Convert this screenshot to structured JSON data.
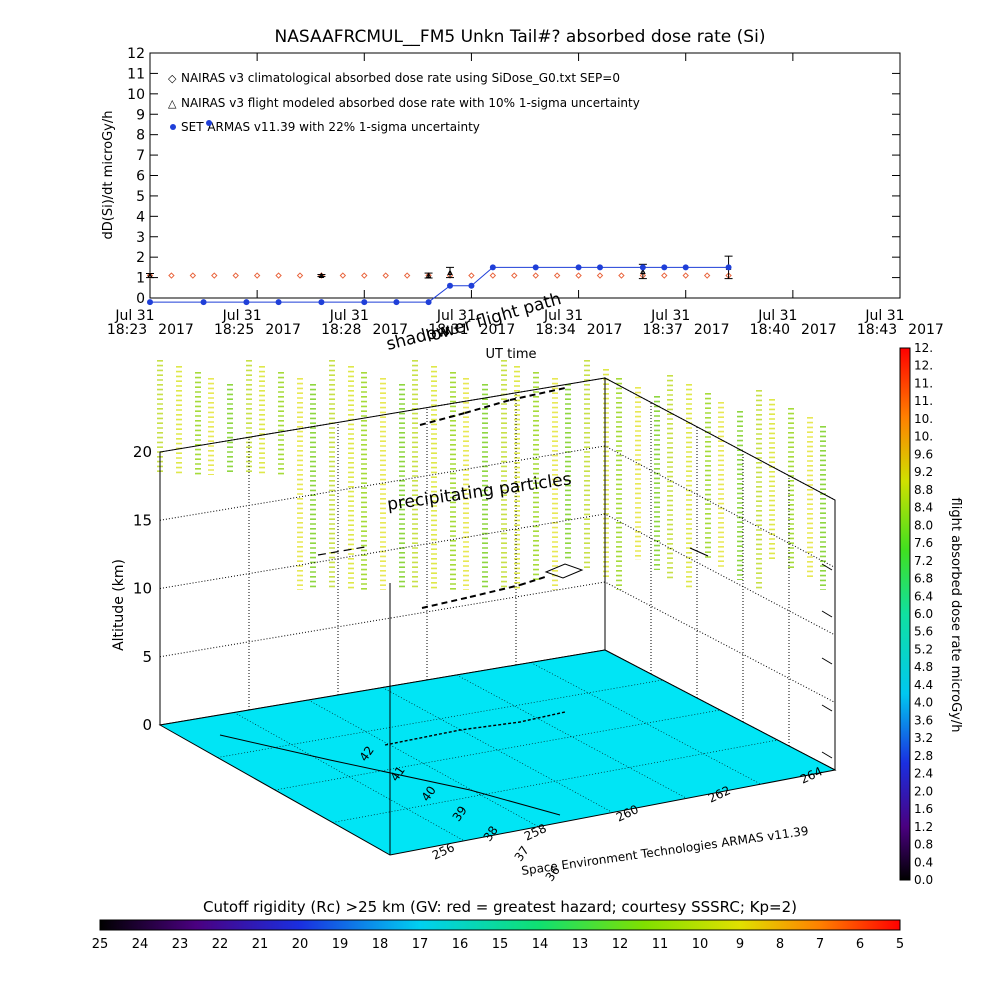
{
  "title": "NASAAFRCMUL__FM5 Unkn Tail#? absorbed dose rate (Si)",
  "chart_data": [
    {
      "type": "line",
      "ylabel": "dD(Si)/dt microGy/h",
      "xlabel": "UT time",
      "ylim": [
        0,
        12
      ],
      "yticks": [
        "0",
        "1",
        "2",
        "3",
        "4",
        "5",
        "6",
        "7",
        "8",
        "9",
        "10",
        "11",
        "12"
      ],
      "xticks": [
        {
          "day": "Jul 31",
          "time": "18:23",
          "year": "2017"
        },
        {
          "day": "Jul 31",
          "time": "18:25",
          "year": "2017"
        },
        {
          "day": "Jul 31",
          "time": "18:28",
          "year": "2017"
        },
        {
          "day": "Jul 31",
          "time": "18:31",
          "year": "2017"
        },
        {
          "day": "Jul 31",
          "time": "18:34",
          "year": "2017"
        },
        {
          "day": "Jul 31",
          "time": "18:37",
          "year": "2017"
        },
        {
          "day": "Jul 31",
          "time": "18:40",
          "year": "2017"
        },
        {
          "day": "Jul 31",
          "time": "18:43",
          "year": "2017"
        }
      ],
      "legend": [
        "NAIRAS v3 climatological absorbed dose rate using SiDose_G0.txt SEP=0",
        "NAIRAS v3 flight modeled absorbed dose rate with 10% 1-sigma uncertainty",
        "SET ARMAS v11.39 with 22% 1-sigma uncertainty"
      ],
      "legend_colors": [
        "#e8623a",
        "#000000",
        "#1f3fd8"
      ],
      "series": [
        {
          "name": "NAIRAS v3 climatological absorbed dose rate using SiDose_G0.txt SEP=0",
          "x": [
            0,
            0.6,
            1.2,
            1.8,
            2.4,
            3.0,
            3.6,
            4.2,
            4.8,
            5.4,
            6.0,
            6.6,
            7.2,
            7.8,
            8.4,
            9.0,
            9.6,
            10.2,
            10.8,
            11.4,
            12.0,
            12.6,
            13.2,
            13.8,
            14.4,
            15.0,
            15.6,
            16.2
          ],
          "values": [
            1.1,
            1.1,
            1.1,
            1.1,
            1.1,
            1.1,
            1.1,
            1.1,
            1.1,
            1.1,
            1.1,
            1.1,
            1.1,
            1.1,
            1.1,
            1.1,
            1.1,
            1.1,
            1.1,
            1.1,
            1.1,
            1.1,
            1.1,
            1.1,
            1.1,
            1.1,
            1.1,
            1.1
          ]
        },
        {
          "name": "NAIRAS v3 flight modeled absorbed dose rate with 10% 1-sigma uncertainty",
          "x": [
            0,
            4.8,
            7.8,
            8.4,
            13.8,
            16.2
          ],
          "values": [
            1.1,
            1.1,
            1.1,
            1.25,
            1.3,
            1.5
          ],
          "err": [
            0.1,
            0.05,
            0.12,
            0.25,
            0.35,
            0.55
          ]
        },
        {
          "name": "SET ARMAS v11.39 with 22% 1-sigma uncertainty",
          "x": [
            0,
            1.5,
            2.7,
            3.6,
            4.8,
            6.0,
            6.9,
            7.8,
            8.4,
            9.0,
            9.6,
            10.8,
            12.0,
            12.6,
            13.8,
            14.4,
            15.0,
            16.2
          ],
          "values": [
            -0.2,
            -0.2,
            -0.2,
            -0.2,
            -0.2,
            -0.2,
            -0.2,
            -0.2,
            0.6,
            0.6,
            1.5,
            1.5,
            1.5,
            1.5,
            1.5,
            1.5,
            1.5,
            1.5
          ]
        }
      ]
    },
    {
      "type": "scatter",
      "annotations": [
        "lower flight path",
        "shadow",
        "precipitating particles"
      ],
      "zlabel": "Altitude (km)",
      "zticks": [
        "0",
        "5",
        "10",
        "15",
        "20"
      ],
      "lat_ticks": [
        "36",
        "37",
        "38",
        "39",
        "40",
        "41",
        "42"
      ],
      "lon_ticks": [
        "256",
        "258",
        "260",
        "262",
        "264"
      ],
      "footer": "Space Environment Technologies ARMAS v11.39",
      "dose_colorbar": {
        "label": "flight absorbed dose rate microGy/h",
        "ticks": [
          "0.0",
          "0.4",
          "0.8",
          "1.2",
          "1.6",
          "2.0",
          "2.4",
          "2.8",
          "3.2",
          "3.6",
          "4.0",
          "4.4",
          "4.8",
          "5.2",
          "5.6",
          "6.0",
          "6.4",
          "6.8",
          "7.2",
          "7.6",
          "8.0",
          "8.4",
          "8.8",
          "9.2",
          "9.6",
          "10.",
          "10.",
          "11.",
          "11.",
          "12.",
          "12."
        ]
      }
    },
    {
      "type": "heatmap",
      "title": "Cutoff rigidity (Rc) >25 km (GV: red = greatest hazard; courtesy SSSRC; Kp=2)",
      "ticks": [
        "25",
        "24",
        "23",
        "22",
        "21",
        "20",
        "19",
        "18",
        "17",
        "16",
        "15",
        "14",
        "13",
        "12",
        "11",
        "10",
        "9",
        "8",
        "7",
        "6",
        "5"
      ]
    }
  ]
}
